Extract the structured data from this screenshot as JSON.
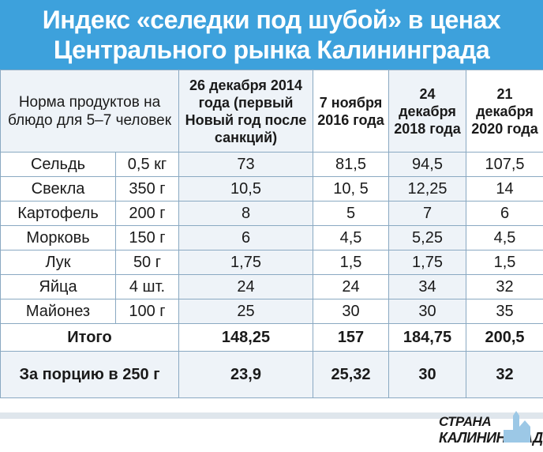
{
  "title": {
    "line1": "Индекс «селедки под шубой» в ценах",
    "line2": "Центрального рынка Калининграда"
  },
  "table": {
    "norm_header": "Норма продуктов на блюдо для 5–7 человек",
    "columns": [
      "26 декабря 2014 года (первый Новый год после санкций)",
      "7 ноября 2016 года",
      "24 декабря 2018 года",
      "21 декабря 2020 года"
    ],
    "rows": [
      {
        "name": "Сельдь",
        "amount": "0,5 кг",
        "values": [
          "73",
          "81,5",
          "94,5",
          "107,5"
        ]
      },
      {
        "name": "Свекла",
        "amount": "350 г",
        "values": [
          "10,5",
          "10, 5",
          "12,25",
          "14"
        ]
      },
      {
        "name": "Картофель",
        "amount": "200 г",
        "values": [
          "8",
          "5",
          "7",
          "6"
        ]
      },
      {
        "name": "Морковь",
        "amount": "150 г",
        "values": [
          "6",
          "4,5",
          "5,25",
          "4,5"
        ]
      },
      {
        "name": "Лук",
        "amount": "50 г",
        "values": [
          "1,75",
          "1,5",
          "1,75",
          "1,5"
        ]
      },
      {
        "name": "Яйца",
        "amount": "4 шт.",
        "values": [
          "24",
          "24",
          "34",
          "32"
        ]
      },
      {
        "name": "Майонез",
        "amount": "100 г",
        "values": [
          "25",
          "30",
          "30",
          "35"
        ]
      }
    ],
    "total": {
      "label": "Итого",
      "values": [
        "148,25",
        "157",
        "184,75",
        "200,5"
      ]
    },
    "portion": {
      "label": "За порцию в 250 г",
      "values": [
        "23,9",
        "25,32",
        "30",
        "32"
      ]
    }
  },
  "logo": {
    "line1": "СТРАНА",
    "line2": "КАЛИНИНГРАД"
  }
}
